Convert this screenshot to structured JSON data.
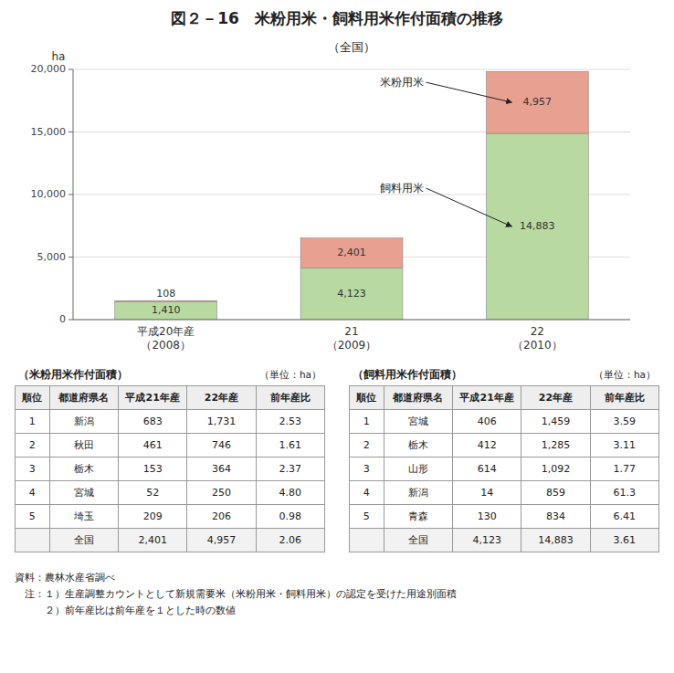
{
  "chart_data": {
    "type": "bar",
    "stacked": true,
    "title": "図２－16　米粉用米・飼料用米作付面積の推移",
    "subtitle": "（全国）",
    "y_label": "ha",
    "categories": [
      "平成20年産\n（2008）",
      "21\n（2009）",
      "22\n（2010）"
    ],
    "series": [
      {
        "name": "飼料用米",
        "color": "#b8d9a0",
        "values": [
          1410,
          4123,
          14883
        ],
        "value_labels": [
          "1,410",
          "4,123",
          "14,883"
        ]
      },
      {
        "name": "米粉用米",
        "color": "#e8a090",
        "values": [
          108,
          2401,
          4957
        ],
        "value_labels": [
          "108",
          "2,401",
          "4,957"
        ]
      }
    ],
    "ylim": [
      0,
      20000
    ],
    "yticks": [
      0,
      {
        "value": 5000,
        "label": "5,000"
      },
      {
        "value": 10000,
        "label": "10,000"
      },
      {
        "value": 15000,
        "label": "15,000"
      },
      {
        "value": 20000,
        "label": "20,000"
      }
    ],
    "grid": true,
    "data_labels": true
  },
  "tables": [
    {
      "title": "（米粉用米作付面積）",
      "unit": "（単位：ha）",
      "headers": [
        "順位",
        "都道府県名",
        "平成21年産",
        "22年産",
        "前年産比"
      ],
      "rows": [
        [
          "1",
          "新潟",
          "683",
          "1,731",
          "2.53"
        ],
        [
          "2",
          "秋田",
          "461",
          "746",
          "1.61"
        ],
        [
          "3",
          "栃木",
          "153",
          "364",
          "2.37"
        ],
        [
          "4",
          "宮城",
          "52",
          "250",
          "4.80"
        ],
        [
          "5",
          "埼玉",
          "209",
          "206",
          "0.98"
        ],
        [
          null,
          "全国",
          "2,401",
          "4,957",
          "2.06"
        ]
      ]
    },
    {
      "title": "（飼料用米作付面積）",
      "unit": "（単位：ha）",
      "headers": [
        "順位",
        "都道府県名",
        "平成21年産",
        "22年産",
        "前年産比"
      ],
      "rows": [
        [
          "1",
          "宮城",
          "406",
          "1,459",
          "3.59"
        ],
        [
          "2",
          "栃木",
          "412",
          "1,285",
          "3.11"
        ],
        [
          "3",
          "山形",
          "614",
          "1,092",
          "1.77"
        ],
        [
          "4",
          "新潟",
          "14",
          "859",
          "61.3"
        ],
        [
          "5",
          "青森",
          "130",
          "834",
          "6.41"
        ],
        [
          null,
          "全国",
          "4,123",
          "14,883",
          "3.61"
        ]
      ]
    }
  ],
  "footer": [
    "資料：農林水産省調べ",
    "　注：１）生産調整カウントとして新規需要米（米粉用米・飼料用米）の認定を受けた用途別面積",
    "　　　２）前年産比は前年産を１とした時の数値"
  ]
}
